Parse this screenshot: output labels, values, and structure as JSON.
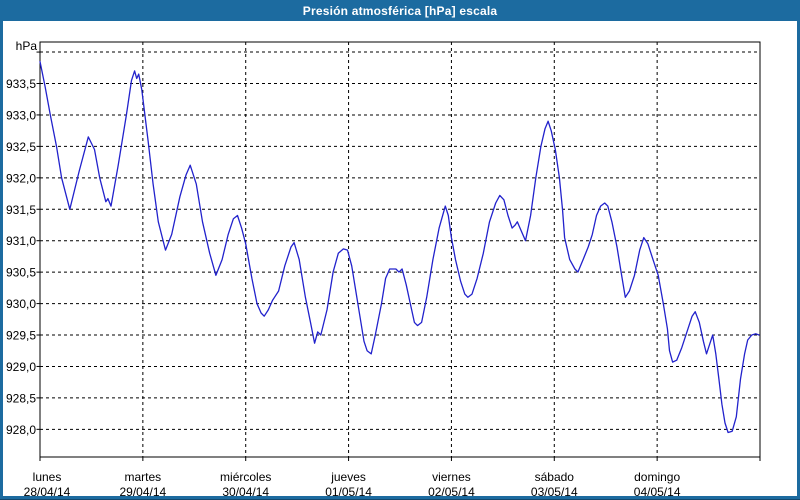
{
  "window": {
    "title": "Presión atmosférica [hPa] escala",
    "titlebar_color": "#1c6ba0",
    "border_color": "#1c6ba0"
  },
  "chart_data": {
    "type": "line",
    "title": "Presión atmosférica [hPa] escala",
    "unit_label": "hPa",
    "grid": true,
    "legend": "none",
    "line_color": "#2222cc",
    "grid_color": "#000000",
    "y_axis": {
      "ylim": [
        927.56,
        934.16
      ],
      "grid_values": [
        934.0,
        933.5,
        933.0,
        932.5,
        932.0,
        931.5,
        931.0,
        930.5,
        930.0,
        929.5,
        929.0,
        928.5,
        928.0
      ],
      "tick_labels": [
        "",
        "933,5",
        "933,0",
        "932,5",
        "932,0",
        "931,5",
        "931,0",
        "930,5",
        "930,0",
        "929,5",
        "929,0",
        "928,5",
        "928,0"
      ],
      "decimal_style": "comma"
    },
    "x_axis": {
      "xlim_days": [
        0,
        7
      ],
      "categories": [
        {
          "day": "lunes",
          "date": "28/04/14"
        },
        {
          "day": "martes",
          "date": "29/04/14"
        },
        {
          "day": "miércoles",
          "date": "30/04/14"
        },
        {
          "day": "jueves",
          "date": "01/05/14"
        },
        {
          "day": "viernes",
          "date": "02/05/14"
        },
        {
          "day": "sábado",
          "date": "03/05/14"
        },
        {
          "day": "domingo",
          "date": "04/05/14"
        }
      ]
    },
    "series": [
      {
        "name": "Presión atmosférica",
        "units": "hPa",
        "points_days_hpa": [
          [
            0.0,
            933.85
          ],
          [
            0.05,
            933.45
          ],
          [
            0.1,
            933.0
          ],
          [
            0.16,
            932.5
          ],
          [
            0.21,
            932.0
          ],
          [
            0.29,
            931.5
          ],
          [
            0.38,
            932.1
          ],
          [
            0.47,
            932.65
          ],
          [
            0.53,
            932.45
          ],
          [
            0.58,
            932.0
          ],
          [
            0.64,
            931.62
          ],
          [
            0.66,
            931.67
          ],
          [
            0.69,
            931.55
          ],
          [
            0.76,
            932.2
          ],
          [
            0.84,
            933.0
          ],
          [
            0.89,
            933.55
          ],
          [
            0.92,
            933.7
          ],
          [
            0.94,
            933.58
          ],
          [
            0.96,
            933.65
          ],
          [
            0.99,
            933.4
          ],
          [
            1.05,
            932.6
          ],
          [
            1.1,
            931.9
          ],
          [
            1.15,
            931.3
          ],
          [
            1.22,
            930.85
          ],
          [
            1.28,
            931.1
          ],
          [
            1.36,
            931.7
          ],
          [
            1.42,
            932.05
          ],
          [
            1.46,
            932.2
          ],
          [
            1.52,
            931.9
          ],
          [
            1.58,
            931.3
          ],
          [
            1.65,
            930.8
          ],
          [
            1.71,
            930.45
          ],
          [
            1.77,
            930.7
          ],
          [
            1.83,
            931.1
          ],
          [
            1.88,
            931.35
          ],
          [
            1.92,
            931.4
          ],
          [
            1.96,
            931.2
          ],
          [
            2.0,
            930.95
          ],
          [
            2.06,
            930.4
          ],
          [
            2.11,
            930.0
          ],
          [
            2.15,
            929.85
          ],
          [
            2.18,
            929.8
          ],
          [
            2.22,
            929.9
          ],
          [
            2.26,
            930.05
          ],
          [
            2.28,
            930.1
          ],
          [
            2.32,
            930.2
          ],
          [
            2.38,
            930.6
          ],
          [
            2.44,
            930.9
          ],
          [
            2.47,
            930.97
          ],
          [
            2.52,
            930.7
          ],
          [
            2.58,
            930.1
          ],
          [
            2.63,
            929.7
          ],
          [
            2.67,
            929.37
          ],
          [
            2.7,
            929.55
          ],
          [
            2.73,
            929.5
          ],
          [
            2.79,
            929.9
          ],
          [
            2.85,
            930.5
          ],
          [
            2.9,
            930.8
          ],
          [
            2.95,
            930.87
          ],
          [
            2.99,
            930.85
          ],
          [
            3.03,
            930.6
          ],
          [
            3.07,
            930.2
          ],
          [
            3.11,
            929.8
          ],
          [
            3.15,
            929.4
          ],
          [
            3.18,
            929.25
          ],
          [
            3.22,
            929.2
          ],
          [
            3.26,
            929.5
          ],
          [
            3.32,
            930.0
          ],
          [
            3.36,
            930.4
          ],
          [
            3.4,
            930.55
          ],
          [
            3.46,
            930.55
          ],
          [
            3.49,
            930.5
          ],
          [
            3.52,
            930.55
          ],
          [
            3.56,
            930.3
          ],
          [
            3.6,
            930.0
          ],
          [
            3.64,
            929.7
          ],
          [
            3.67,
            929.65
          ],
          [
            3.71,
            929.7
          ],
          [
            3.76,
            930.1
          ],
          [
            3.82,
            930.7
          ],
          [
            3.88,
            931.2
          ],
          [
            3.94,
            931.55
          ],
          [
            3.97,
            931.4
          ],
          [
            4.0,
            931.05
          ],
          [
            4.04,
            930.7
          ],
          [
            4.09,
            930.35
          ],
          [
            4.13,
            930.15
          ],
          [
            4.16,
            930.1
          ],
          [
            4.2,
            930.15
          ],
          [
            4.25,
            930.4
          ],
          [
            4.31,
            930.8
          ],
          [
            4.37,
            931.3
          ],
          [
            4.43,
            931.6
          ],
          [
            4.47,
            931.72
          ],
          [
            4.51,
            931.65
          ],
          [
            4.55,
            931.4
          ],
          [
            4.59,
            931.2
          ],
          [
            4.62,
            931.25
          ],
          [
            4.64,
            931.3
          ],
          [
            4.68,
            931.15
          ],
          [
            4.72,
            931.0
          ],
          [
            4.77,
            931.4
          ],
          [
            4.82,
            932.0
          ],
          [
            4.87,
            932.5
          ],
          [
            4.91,
            932.78
          ],
          [
            4.94,
            932.9
          ],
          [
            4.97,
            932.75
          ],
          [
            5.01,
            932.45
          ],
          [
            5.05,
            932.0
          ],
          [
            5.08,
            931.5
          ],
          [
            5.1,
            931.05
          ],
          [
            5.15,
            930.7
          ],
          [
            5.2,
            930.55
          ],
          [
            5.23,
            930.5
          ],
          [
            5.28,
            930.7
          ],
          [
            5.33,
            930.9
          ],
          [
            5.37,
            931.1
          ],
          [
            5.41,
            931.4
          ],
          [
            5.45,
            931.55
          ],
          [
            5.49,
            931.6
          ],
          [
            5.52,
            931.55
          ],
          [
            5.56,
            931.3
          ],
          [
            5.61,
            930.9
          ],
          [
            5.65,
            930.5
          ],
          [
            5.69,
            930.1
          ],
          [
            5.73,
            930.2
          ],
          [
            5.78,
            930.45
          ],
          [
            5.83,
            930.85
          ],
          [
            5.87,
            931.05
          ],
          [
            5.91,
            930.95
          ],
          [
            5.96,
            930.7
          ],
          [
            6.01,
            930.45
          ],
          [
            6.06,
            930.0
          ],
          [
            6.1,
            929.6
          ],
          [
            6.12,
            929.25
          ],
          [
            6.15,
            929.07
          ],
          [
            6.19,
            929.1
          ],
          [
            6.24,
            929.3
          ],
          [
            6.3,
            929.6
          ],
          [
            6.34,
            929.8
          ],
          [
            6.37,
            929.87
          ],
          [
            6.41,
            929.7
          ],
          [
            6.45,
            929.4
          ],
          [
            6.48,
            929.2
          ],
          [
            6.51,
            929.35
          ],
          [
            6.54,
            929.5
          ],
          [
            6.57,
            929.2
          ],
          [
            6.6,
            928.8
          ],
          [
            6.63,
            928.4
          ],
          [
            6.66,
            928.1
          ],
          [
            6.69,
            927.95
          ],
          [
            6.73,
            927.97
          ],
          [
            6.77,
            928.2
          ],
          [
            6.81,
            928.8
          ],
          [
            6.85,
            929.2
          ],
          [
            6.88,
            929.42
          ],
          [
            6.92,
            929.5
          ],
          [
            6.96,
            929.52
          ],
          [
            6.99,
            929.5
          ]
        ]
      }
    ]
  }
}
